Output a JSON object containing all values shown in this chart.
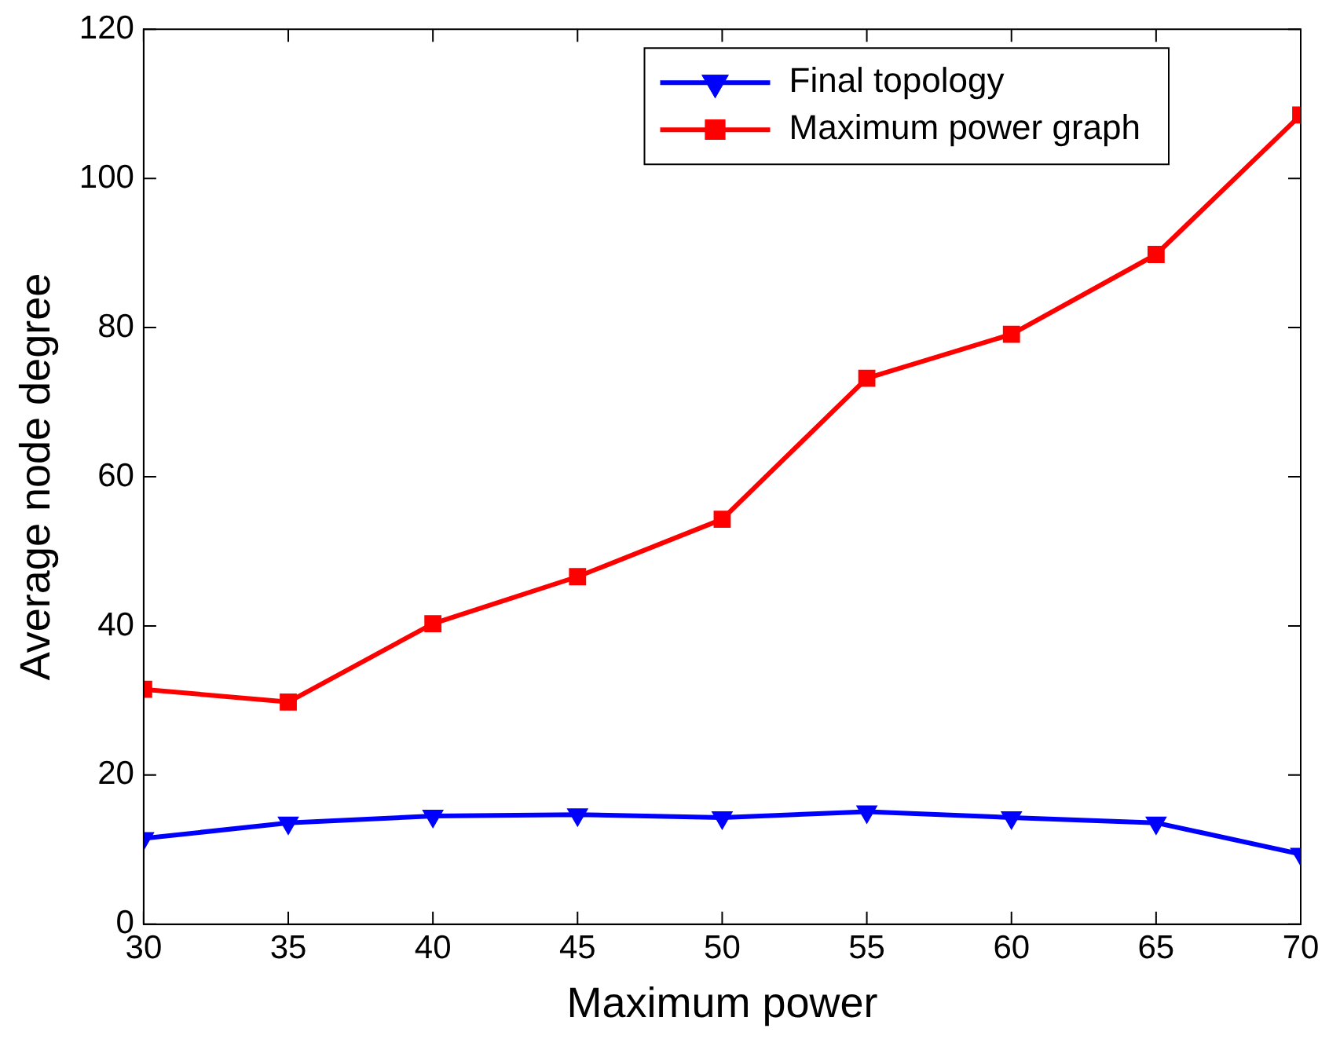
{
  "chart_data": {
    "type": "line",
    "xlabel": "Maximum power",
    "ylabel": "Average node degree",
    "x": [
      30,
      35,
      40,
      45,
      50,
      55,
      60,
      65,
      70
    ],
    "series": [
      {
        "name": "Final topology",
        "color": "#0000ff",
        "marker": "triangle",
        "values": [
          11.5,
          13.6,
          14.5,
          14.7,
          14.3,
          15.1,
          14.3,
          13.6,
          9.4
        ]
      },
      {
        "name": "Maximum power graph",
        "color": "#ff0000",
        "marker": "square",
        "values": [
          31.5,
          29.8,
          40.3,
          46.6,
          54.3,
          73.2,
          79.1,
          89.8,
          108.5
        ]
      }
    ],
    "xlim": [
      30,
      70
    ],
    "xticks": [
      30,
      35,
      40,
      45,
      50,
      55,
      60,
      65,
      70
    ],
    "ylim": [
      0,
      120
    ],
    "yticks": [
      0,
      20,
      40,
      60,
      80,
      100,
      120
    ],
    "grid": false,
    "legend": "top right",
    "line_style": "solid"
  }
}
